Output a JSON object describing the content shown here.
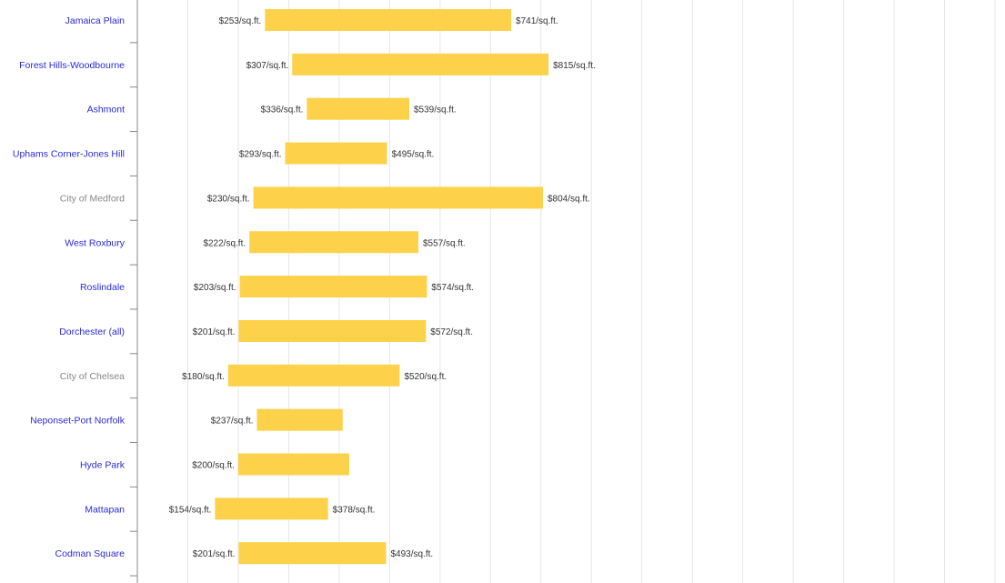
{
  "chart_data": {
    "type": "bar",
    "subtype": "floating-range",
    "title": "",
    "xlabel": "",
    "ylabel": "",
    "xlim": [
      0,
      1700
    ],
    "grid": true,
    "legend": "none",
    "colors": {
      "bar": "#fdd14a",
      "link_label": "#2a2adb",
      "muted_label": "#888888",
      "value_label": "#333333",
      "grid": "#e6e6e6",
      "axis": "#888888"
    },
    "categories": [
      {
        "name": "Jamaica Plain",
        "low": 253,
        "high": 741,
        "low_label": "$253/sq.ft.",
        "high_label": "$741/sq.ft.",
        "linked": true
      },
      {
        "name": "Forest Hills-Woodbourne",
        "low": 307,
        "high": 815,
        "low_label": "$307/sq.ft.",
        "high_label": "$815/sq.ft.",
        "linked": true
      },
      {
        "name": "Ashmont",
        "low": 336,
        "high": 539,
        "low_label": "$336/sq.ft.",
        "high_label": "$539/sq.ft.",
        "linked": true
      },
      {
        "name": "Uphams Corner-Jones Hill",
        "low": 293,
        "high": 495,
        "low_label": "$293/sq.ft.",
        "high_label": "$495/sq.ft.",
        "linked": true
      },
      {
        "name": "City of Medford",
        "low": 230,
        "high": 804,
        "low_label": "$230/sq.ft.",
        "high_label": "$804/sq.ft.",
        "linked": false
      },
      {
        "name": "West Roxbury",
        "low": 222,
        "high": 557,
        "low_label": "$222/sq.ft.",
        "high_label": "$557/sq.ft.",
        "linked": true
      },
      {
        "name": "Roslindale",
        "low": 203,
        "high": 574,
        "low_label": "$203/sq.ft.",
        "high_label": "$574/sq.ft.",
        "linked": true
      },
      {
        "name": "Dorchester (all)",
        "low": 201,
        "high": 572,
        "low_label": "$201/sq.ft.",
        "high_label": "$572/sq.ft.",
        "linked": true
      },
      {
        "name": "City of Chelsea",
        "low": 180,
        "high": 520,
        "low_label": "$180/sq.ft.",
        "high_label": "$520/sq.ft.",
        "linked": false
      },
      {
        "name": "Neponset-Port Norfolk",
        "low": 237,
        "high": 407,
        "low_label": "$237/sq.ft.",
        "high_label": "",
        "linked": true
      },
      {
        "name": "Hyde Park",
        "low": 200,
        "high": 420,
        "low_label": "$200/sq.ft.",
        "high_label": "",
        "linked": true
      },
      {
        "name": "Mattapan",
        "low": 154,
        "high": 378,
        "low_label": "$154/sq.ft.",
        "high_label": "$378/sq.ft.",
        "linked": true
      },
      {
        "name": "Codman Square",
        "low": 201,
        "high": 493,
        "low_label": "$201/sq.ft.",
        "high_label": "$493/sq.ft.",
        "linked": true
      }
    ]
  }
}
